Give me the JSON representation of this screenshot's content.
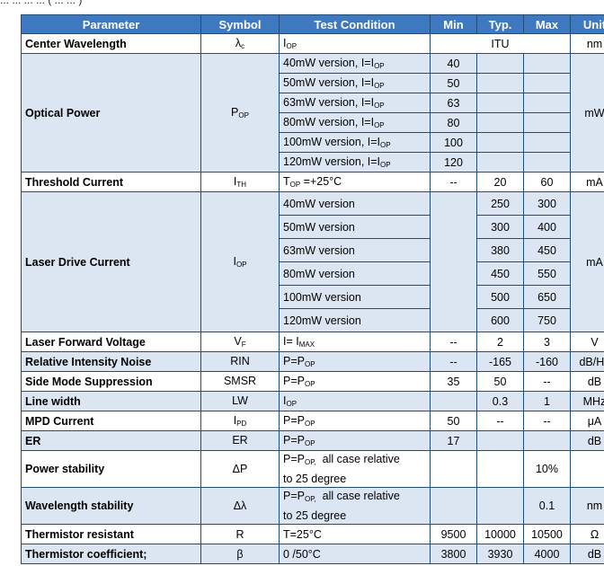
{
  "header_fragment": "... ... ... ... ( ... ... )",
  "columns": [
    "Parameter",
    "Symbol",
    "Test Condition",
    "Min",
    "Typ.",
    "Max",
    "Unit"
  ],
  "center_wavelength": {
    "param": "Center Wavelength",
    "sym": "λ",
    "sym_sub": "c",
    "cond_main": "I",
    "cond_sub": "OP",
    "typ": "ITU",
    "unit": "nm"
  },
  "optical_power": {
    "param": "Optical Power",
    "sym": "P",
    "sym_sub": "OP",
    "unit": "mW",
    "rows": [
      {
        "cond": "40mW version, I=I",
        "cond_sub": "OP",
        "min": "40"
      },
      {
        "cond": "50mW version, I=I",
        "cond_sub": "OP",
        "min": "50"
      },
      {
        "cond": "63mW version, I=I",
        "cond_sub": "OP",
        "min": "63"
      },
      {
        "cond": "80mW version, I=I",
        "cond_sub": "OP",
        "min": "80"
      },
      {
        "cond": "100mW version, I=I",
        "cond_sub": "OP",
        "min": "100"
      },
      {
        "cond": "120mW version, I=I",
        "cond_sub": "OP",
        "min": "120"
      }
    ]
  },
  "threshold_current": {
    "param": "Threshold Current",
    "sym": "I",
    "sym_sub": "TH",
    "cond_main": "T",
    "cond_sub": "OP",
    "cond_tail": " =+25°C",
    "min": "--",
    "typ": "20",
    "max": "60",
    "unit": "mA"
  },
  "laser_drive_current": {
    "param": "Laser Drive Current",
    "sym": "I",
    "sym_sub": "OP",
    "unit": "mA",
    "rows": [
      {
        "cond": "40mW version",
        "typ": "250",
        "max": "300"
      },
      {
        "cond": "50mW version",
        "typ": "300",
        "max": "400"
      },
      {
        "cond": "63mW version",
        "typ": "380",
        "max": "450"
      },
      {
        "cond": "80mW version",
        "typ": "450",
        "max": "550"
      },
      {
        "cond": "100mW version",
        "typ": "500",
        "max": "650"
      },
      {
        "cond": "120mW version",
        "typ": "600",
        "max": "750"
      }
    ]
  },
  "rows": [
    {
      "param": "Laser Forward Voltage",
      "sym": "V",
      "sym_sub": "F",
      "cond": "I= I",
      "cond_sub": "MAX",
      "min": "--",
      "typ": "2",
      "max": "3",
      "unit": "V"
    },
    {
      "param": "Relative Intensity Noise",
      "sym": "RIN",
      "sym_sub": "",
      "cond": "P=P",
      "cond_sub": "OP",
      "min": "--",
      "typ": "-165",
      "max": "-160",
      "unit": "dB/Hz"
    },
    {
      "param": "Side Mode Suppression",
      "sym": "SMSR",
      "sym_sub": "",
      "cond": "P=P",
      "cond_sub": "OP",
      "min": "35",
      "typ": "50",
      "max": "--",
      "unit": "dB"
    },
    {
      "param": "Line width",
      "sym": "LW",
      "sym_sub": "",
      "cond": "I",
      "cond_sub": "OP",
      "min": "",
      "typ": "0.3",
      "max": "1",
      "unit": "MHz"
    },
    {
      "param": "MPD Current",
      "sym": "I",
      "sym_sub": "PD",
      "cond": "P=P",
      "cond_sub": "OP",
      "min": "50",
      "typ": "--",
      "max": "--",
      "unit": "μA"
    },
    {
      "param": "ER",
      "sym": "ER",
      "sym_sub": "",
      "cond": "P=P",
      "cond_sub": "OP",
      "min": "17",
      "typ": "",
      "max": "",
      "unit": "dB"
    }
  ],
  "power_stability": {
    "param": "Power stability",
    "sym": "ΔP",
    "cond_a": "P=P",
    "cond_sub": "OP,",
    "cond_b": "  all case relative",
    "cond_c": "to 25 degree",
    "min": "",
    "typ": "",
    "max": "10%",
    "unit": ""
  },
  "wavelength_stability": {
    "param": "Wavelength stability",
    "sym": "Δλ",
    "cond_a": "P=P",
    "cond_sub": "OP,",
    "cond_b": "  all case relative",
    "cond_c": "to 25 degree",
    "min": "",
    "typ": "",
    "max": "0.1",
    "unit": "nm"
  },
  "thermistor_resistant": {
    "param": "Thermistor resistant",
    "sym": "R",
    "cond": "T=25°C",
    "min": "9500",
    "typ": "10000",
    "max": "10500",
    "unit": "Ω"
  },
  "thermistor_coefficient": {
    "param": "Thermistor coefficient;",
    "sym": "β",
    "cond": "0 /50°C",
    "min": "3800",
    "typ": "3930",
    "max": "4000",
    "unit": "dB"
  }
}
